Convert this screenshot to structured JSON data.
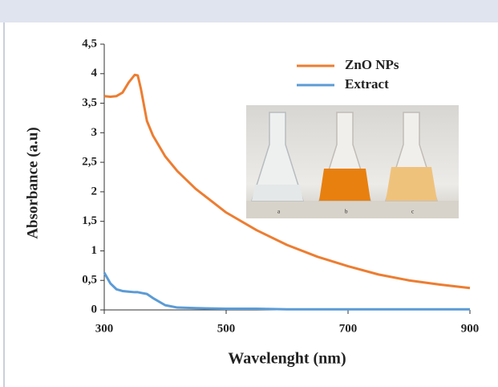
{
  "chart_data": {
    "type": "line",
    "x_label": "Wavelenght (nm)",
    "y_label": "Absorbance (a.u)",
    "x": [
      300,
      310,
      320,
      330,
      340,
      350,
      355,
      360,
      370,
      380,
      400,
      420,
      450,
      500,
      550,
      600,
      650,
      700,
      750,
      800,
      850,
      900
    ],
    "series": [
      {
        "name": "ZnO NPs",
        "color": "#ed7d31",
        "values": [
          3.62,
          3.61,
          3.62,
          3.68,
          3.85,
          3.98,
          3.97,
          3.75,
          3.2,
          2.95,
          2.6,
          2.35,
          2.05,
          1.65,
          1.35,
          1.1,
          0.9,
          0.74,
          0.6,
          0.5,
          0.43,
          0.37
        ]
      },
      {
        "name": "Extract",
        "color": "#5b9bd5",
        "values": [
          0.63,
          0.45,
          0.35,
          0.32,
          0.31,
          0.3,
          0.3,
          0.29,
          0.27,
          0.2,
          0.08,
          0.04,
          0.03,
          0.02,
          0.02,
          0.01,
          0.01,
          0.01,
          0.01,
          0.01,
          0.01,
          0.01
        ]
      }
    ],
    "xlim": [
      300,
      900
    ],
    "xticks": [
      300,
      500,
      700,
      900
    ],
    "ylim": [
      0,
      4.5
    ],
    "yticks": [
      0,
      {
        "value": 0.5,
        "label": "0,5"
      },
      1,
      {
        "value": 1.5,
        "label": "1,5"
      },
      2,
      {
        "value": 2.5,
        "label": "2,5"
      },
      3,
      {
        "value": 3.5,
        "label": "3,5"
      },
      4,
      {
        "value": 4.5,
        "label": "4,5"
      }
    ],
    "grid": false,
    "legend": "top-right",
    "inset_labels": [
      "a",
      "b",
      "c"
    ]
  }
}
